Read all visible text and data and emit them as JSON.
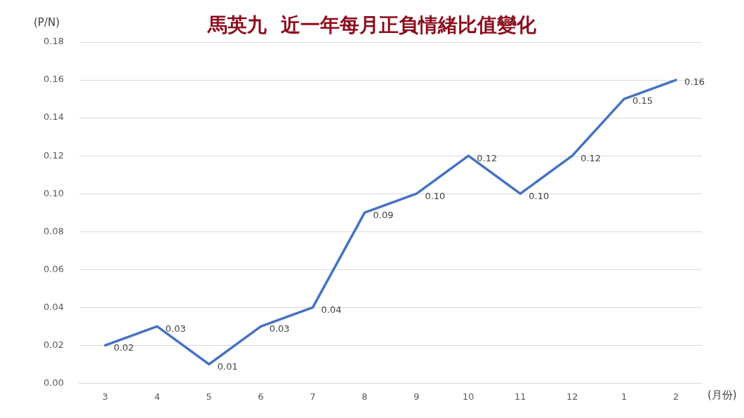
{
  "chart_data": {
    "type": "line",
    "title": "馬英九  近一年每月正負情緒比值變化",
    "xlabel": "(月份)",
    "ylabel": "(P/N)",
    "categories": [
      "3",
      "4",
      "5",
      "6",
      "7",
      "8",
      "9",
      "10",
      "11",
      "12",
      "1",
      "2"
    ],
    "series": [
      {
        "color": "#4472c4",
        "values": [
          0.02,
          0.03,
          0.01,
          0.03,
          0.04,
          0.09,
          0.1,
          0.12,
          0.1,
          0.12,
          0.15,
          0.16
        ],
        "value_labels": [
          "0.02",
          "0.03",
          "0.01",
          "0.03",
          "0.04",
          "0.09",
          "0.10",
          "0.12",
          "0.10",
          "0.12",
          "0.15",
          "0.16"
        ]
      }
    ],
    "ylim": [
      0,
      0.18
    ],
    "yticks": [
      {
        "value": 0,
        "label": "0.00"
      },
      {
        "value": 0.02,
        "label": "0.02"
      },
      {
        "value": 0.04,
        "label": "0.04"
      },
      {
        "value": 0.06,
        "label": "0.06"
      },
      {
        "value": 0.08,
        "label": "0.08"
      },
      {
        "value": 0.1,
        "label": "0.10"
      },
      {
        "value": 0.12,
        "label": "0.12"
      },
      {
        "value": 0.14,
        "label": "0.14"
      },
      {
        "value": 0.16,
        "label": "0.16"
      },
      {
        "value": 0.18,
        "label": "0.18"
      }
    ],
    "grid": "y",
    "legend": false,
    "marker": "none",
    "line_style": "solid"
  }
}
